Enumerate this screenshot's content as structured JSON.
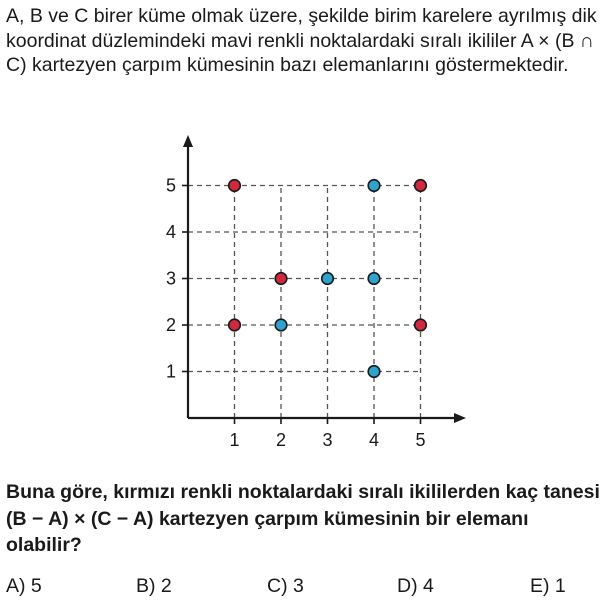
{
  "question": {
    "intro": "A, B ve C birer küme olmak üzere, şekilde birim karelere ayrılmış dik koordinat düzlemindeki mavi renkli noktalardaki sıralı ikililer A × (B ∩ C) kartezyen çarpım kümesinin bazı elemanlarını göstermektedir.",
    "prompt": "Buna göre, kırmızı renkli noktalardaki sıralı ikililerden kaç tanesi (B − A) × (C − A) kartezyen çarpım kümesinin bir elemanı olabilir?",
    "options": [
      "A) 5",
      "B) 2",
      "C) 3",
      "D) 4",
      "E) 1"
    ]
  },
  "chart_data": {
    "type": "scatter",
    "x_ticks": [
      "1",
      "2",
      "3",
      "4",
      "5"
    ],
    "y_ticks": [
      "1",
      "2",
      "3",
      "4",
      "5"
    ],
    "xlim": [
      0,
      5.6
    ],
    "ylim": [
      0,
      5.6
    ],
    "grid": true,
    "series": [
      {
        "color": "#d0283f",
        "points": [
          [
            1,
            5
          ],
          [
            5,
            5
          ],
          [
            2,
            3
          ],
          [
            1,
            2
          ],
          [
            5,
            2
          ]
        ]
      },
      {
        "color": "#2da3cf",
        "points": [
          [
            4,
            5
          ],
          [
            3,
            3
          ],
          [
            4,
            3
          ],
          [
            2,
            2
          ],
          [
            4,
            1
          ]
        ]
      }
    ]
  }
}
